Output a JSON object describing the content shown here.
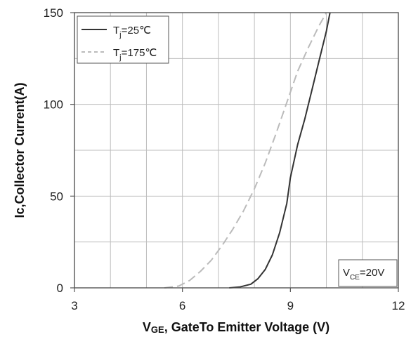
{
  "chart_data": {
    "type": "line",
    "xlabel_main": "V",
    "xlabel_sub": "GE",
    "xlabel_rest": ", GateTo Emitter Voltage (V)",
    "ylabel": "Ic,Collector Current(A)",
    "xlim": [
      3,
      12
    ],
    "ylim": [
      0,
      150
    ],
    "xticks": [
      "3",
      "6",
      "9",
      "12"
    ],
    "yticks": [
      "0",
      "50",
      "100",
      "150"
    ],
    "grid": true,
    "legend_position": "top-left",
    "annotation": {
      "main": "V",
      "sub": "CE",
      "rest": "=20V"
    },
    "series": [
      {
        "name": "T_j=25℃",
        "name_main": "T",
        "name_sub": "j",
        "name_rest": "=25℃",
        "style": "solid",
        "color": "#333333",
        "x": [
          7.3,
          7.6,
          7.9,
          8.1,
          8.3,
          8.5,
          8.7,
          8.9,
          9.0,
          9.2,
          9.4,
          9.6,
          9.8,
          10.0,
          10.1
        ],
        "y": [
          0,
          0.5,
          2,
          5,
          10,
          18,
          30,
          46,
          60,
          78,
          92,
          108,
          124,
          140,
          150
        ]
      },
      {
        "name": "T_j=175℃",
        "name_main": "T",
        "name_sub": "j",
        "name_rest": "=175℃",
        "style": "dashed",
        "color": "#bbbbbb",
        "x": [
          5.5,
          5.9,
          6.2,
          6.5,
          6.8,
          7.1,
          7.4,
          7.7,
          8.0,
          8.3,
          8.6,
          8.9,
          9.2,
          9.5,
          9.8,
          10.0
        ],
        "y": [
          0,
          1,
          4,
          9,
          15,
          23,
          32,
          42,
          54,
          68,
          84,
          101,
          118,
          131,
          143,
          150
        ]
      }
    ]
  }
}
